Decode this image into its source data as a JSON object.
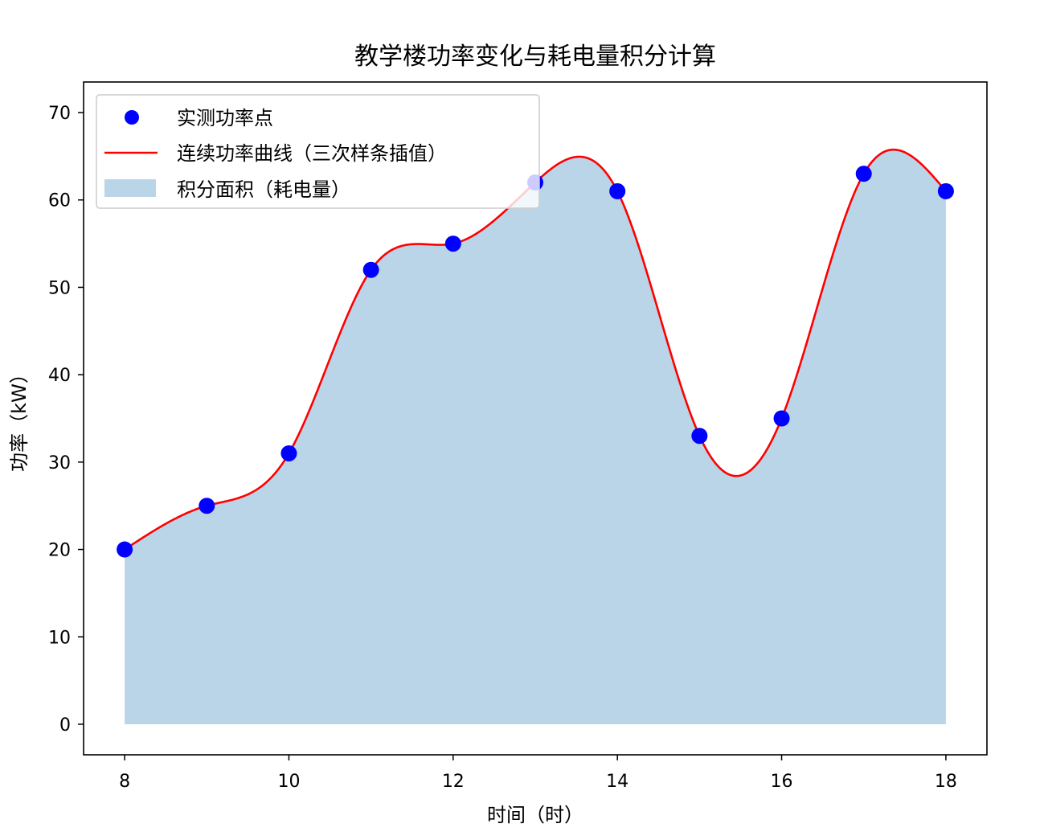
{
  "chart_data": {
    "type": "line",
    "title": "教学楼功率变化与耗电量积分计算",
    "xlabel": "时间（时）",
    "ylabel": "功率（kW）",
    "xlim": [
      7.5,
      18.5
    ],
    "ylim": [
      -3.5,
      73.5
    ],
    "x_ticks": [
      8,
      10,
      12,
      14,
      16,
      18
    ],
    "y_ticks": [
      0,
      10,
      20,
      30,
      40,
      50,
      60,
      70
    ],
    "grid": false,
    "legend_position": "top-left",
    "series": [
      {
        "name": "实测功率点",
        "kind": "scatter",
        "color": "#0000ff",
        "x": [
          8,
          9,
          10,
          11,
          12,
          13,
          14,
          15,
          16,
          17,
          18
        ],
        "y": [
          20,
          25,
          31,
          52,
          55,
          62,
          61,
          33,
          35,
          63,
          61
        ]
      },
      {
        "name": "连续功率曲线（三次样条插值）",
        "kind": "line",
        "color": "#ff0000",
        "interpolation": "cubic-spline"
      },
      {
        "name": "积分面积（耗电量）",
        "kind": "area",
        "color": "#bad4e8"
      }
    ]
  }
}
